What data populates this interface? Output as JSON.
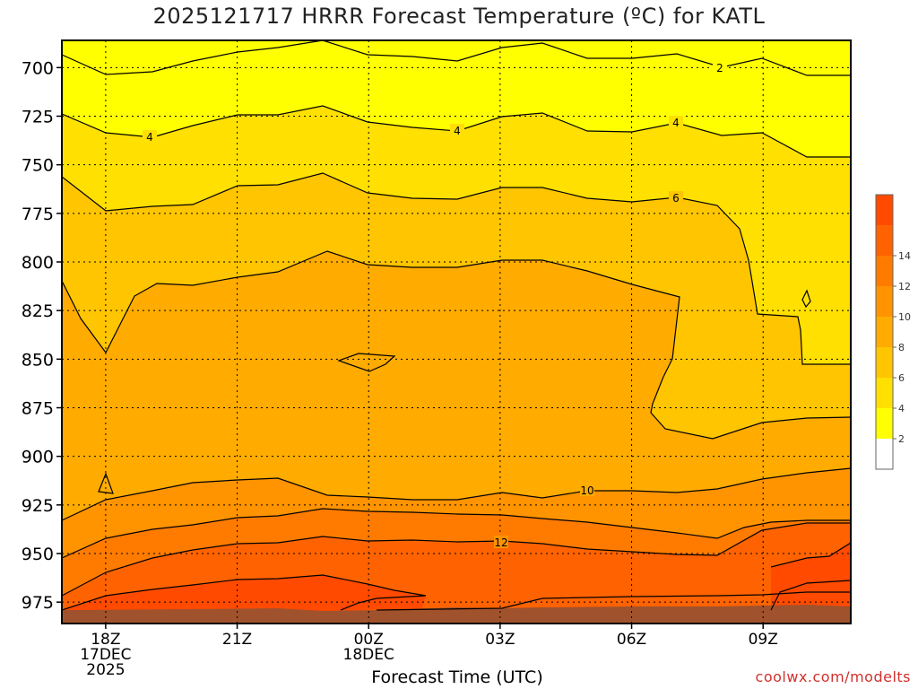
{
  "chart_data": {
    "type": "contour",
    "title": "2025121717 HRRR Forecast Temperature (ºC) for KATL",
    "xlabel": "Forecast Time (UTC)",
    "ylabel": "",
    "credit": "coolwx.com/modelts",
    "y_axis": {
      "ticks": [
        "700",
        "725",
        "750",
        "775",
        "800",
        "825",
        "850",
        "875",
        "900",
        "925",
        "950",
        "975"
      ],
      "ylim": [
        986,
        686
      ],
      "units": "hPa"
    },
    "x_axis": {
      "ticks": [
        {
          "lines": [
            "18Z",
            "17DEC",
            "2025"
          ],
          "hour": 18
        },
        {
          "lines": [
            "21Z"
          ],
          "hour": 21
        },
        {
          "lines": [
            "00Z",
            "18DEC"
          ],
          "hour": 24
        },
        {
          "lines": [
            "03Z"
          ],
          "hour": 27
        },
        {
          "lines": [
            "06Z"
          ],
          "hour": 30
        },
        {
          "lines": [
            "09Z"
          ],
          "hour": 33
        }
      ],
      "xlim": [
        17,
        35
      ]
    },
    "colorbar": {
      "labels": [
        "2",
        "4",
        "6",
        "8",
        "10",
        "12",
        "14"
      ],
      "colors": [
        "#ffffff",
        "#ffff00",
        "#ffe000",
        "#ffc500",
        "#ffab00",
        "#ff9300",
        "#ff7b00",
        "#ff6200",
        "#ff4a00"
      ]
    },
    "contour_labels": [
      "2",
      "4",
      "4",
      "4",
      "6",
      "10",
      "12"
    ],
    "colors": {
      "ground": "#a0522d",
      "contour": "#000000",
      "grid": "#000000"
    }
  }
}
